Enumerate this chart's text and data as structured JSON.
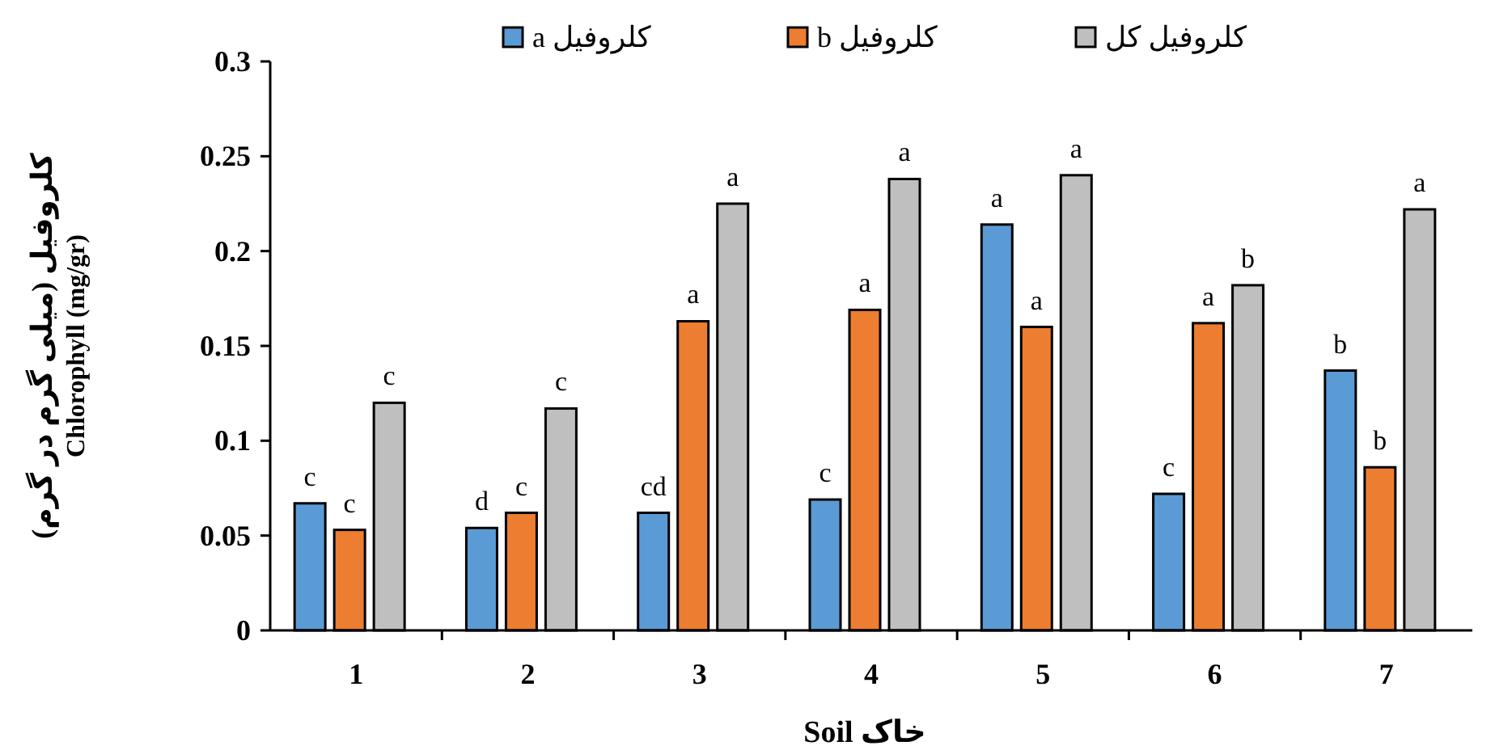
{
  "chart_data": {
    "type": "bar",
    "xlabel": "خاک Soil",
    "ylabel": "کلروفیل (میلی گرم در گرم)\nChlorophyll (mg/gr)",
    "categories": [
      "1",
      "2",
      "3",
      "4",
      "5",
      "6",
      "7"
    ],
    "series": [
      {
        "name": "کلروفیل a",
        "color": "#5b9bd5",
        "values": [
          0.067,
          0.054,
          0.062,
          0.069,
          0.214,
          0.072,
          0.137
        ],
        "value_labels": [
          "c",
          "d",
          "cd",
          "c",
          "a",
          "c",
          "b"
        ]
      },
      {
        "name": "کلروفیل b",
        "color": "#ed7d31",
        "values": [
          0.053,
          0.062,
          0.163,
          0.169,
          0.16,
          0.162,
          0.086
        ],
        "value_labels": [
          "c",
          "c",
          "a",
          "a",
          "a",
          "a",
          "b"
        ]
      },
      {
        "name": "کلروفیل کل",
        "color": "#bfbfbf",
        "values": [
          0.12,
          0.117,
          0.225,
          0.238,
          0.24,
          0.182,
          0.222
        ],
        "value_labels": [
          "c",
          "c",
          "a",
          "a",
          "a",
          "b",
          "a"
        ]
      }
    ],
    "ylim": [
      0,
      0.3
    ],
    "yticks": [
      0,
      0.05,
      0.1,
      0.15,
      0.2,
      0.25,
      0.3
    ],
    "grid": false,
    "legend": "top"
  }
}
